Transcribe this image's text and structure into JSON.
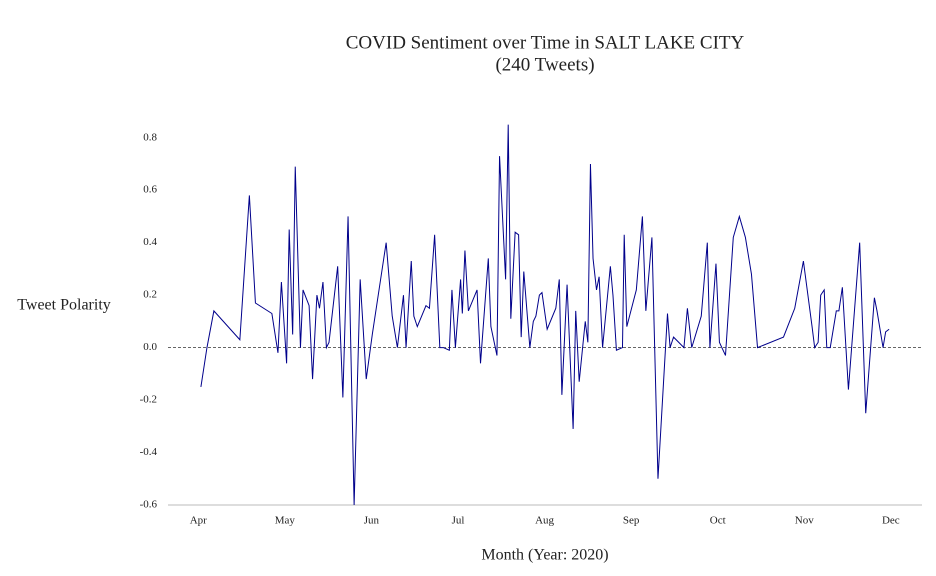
{
  "chart_data": {
    "type": "line",
    "title": "COVID Sentiment over Time in SALT LAKE CITY",
    "subtitle": "(240 Tweets)",
    "x_label": "Month (Year: 2020)",
    "y_label": "Tweet Polarity",
    "xlim": [
      3.65,
      12.36
    ],
    "xticks": [
      {
        "value": 4,
        "label": "Apr"
      },
      {
        "value": 5,
        "label": "May"
      },
      {
        "value": 6,
        "label": "Jun"
      },
      {
        "value": 7,
        "label": "Jul"
      },
      {
        "value": 8,
        "label": "Aug"
      },
      {
        "value": 9,
        "label": "Sep"
      },
      {
        "value": 10,
        "label": "Oct"
      },
      {
        "value": 11,
        "label": "Nov"
      },
      {
        "value": 12,
        "label": "Dec"
      }
    ],
    "ylim": [
      -0.6,
      0.86
    ],
    "yticks": [
      -0.6,
      -0.4,
      -0.2,
      {
        "value": 0,
        "label": "0.0"
      },
      0.2,
      0.4,
      0.6,
      0.8
    ],
    "reference_line": 0,
    "series": [
      {
        "color": "#00008b",
        "x": [
          4.03,
          4.1,
          4.18,
          4.48,
          4.59,
          4.66,
          4.85,
          4.92,
          4.96,
          5.02,
          5.05,
          5.09,
          5.12,
          5.18,
          5.21,
          5.28,
          5.32,
          5.37,
          5.4,
          5.44,
          5.48,
          5.51,
          5.61,
          5.67,
          5.73,
          5.8,
          5.87,
          5.94,
          6.01,
          6.17,
          6.24,
          6.3,
          6.37,
          6.4,
          6.46,
          6.49,
          6.53,
          6.63,
          6.67,
          6.73,
          6.79,
          6.83,
          6.9,
          6.93,
          6.97,
          7.03,
          7.05,
          7.08,
          7.12,
          7.22,
          7.26,
          7.35,
          7.38,
          7.45,
          7.48,
          7.55,
          7.58,
          7.61,
          7.66,
          7.7,
          7.73,
          7.76,
          7.83,
          7.87,
          7.9,
          7.94,
          7.97,
          8.03,
          8.13,
          8.17,
          8.2,
          8.26,
          8.33,
          8.36,
          8.4,
          8.47,
          8.5,
          8.53,
          8.56,
          8.6,
          8.63,
          8.67,
          8.76,
          8.79,
          8.83,
          8.9,
          8.92,
          8.95,
          9.06,
          9.13,
          9.17,
          9.24,
          9.31,
          9.42,
          9.45,
          9.49,
          9.61,
          9.65,
          9.7,
          9.81,
          9.88,
          9.91,
          9.98,
          10.02,
          10.09,
          10.18,
          10.25,
          10.32,
          10.39,
          10.46,
          10.76,
          10.89,
          10.99,
          11.09,
          11.12,
          11.16,
          11.19,
          11.23,
          11.26,
          11.3,
          11.37,
          11.4,
          11.44,
          11.51,
          11.64,
          11.71,
          11.81,
          11.84,
          11.91,
          11.94,
          11.98
        ],
        "values": [
          -0.15,
          0.0,
          0.14,
          0.03,
          0.58,
          0.17,
          0.13,
          -0.02,
          0.25,
          -0.06,
          0.45,
          0.05,
          0.69,
          0.0,
          0.22,
          0.16,
          -0.12,
          0.2,
          0.15,
          0.25,
          0.0,
          0.02,
          0.31,
          -0.19,
          0.5,
          -0.6,
          0.26,
          -0.12,
          0.05,
          0.4,
          0.12,
          0.0,
          0.2,
          0.0,
          0.33,
          0.12,
          0.08,
          0.16,
          0.15,
          0.43,
          0.0,
          0.0,
          -0.01,
          0.22,
          0.0,
          0.26,
          0.13,
          0.37,
          0.14,
          0.22,
          -0.06,
          0.34,
          0.08,
          -0.03,
          0.73,
          0.26,
          0.85,
          0.11,
          0.44,
          0.43,
          0.04,
          0.29,
          0.0,
          0.1,
          0.12,
          0.2,
          0.21,
          0.07,
          0.15,
          0.26,
          -0.18,
          0.24,
          -0.31,
          0.14,
          -0.13,
          0.1,
          0.02,
          0.7,
          0.34,
          0.22,
          0.27,
          0.0,
          0.31,
          0.2,
          -0.01,
          0.0,
          0.43,
          0.08,
          0.22,
          0.5,
          0.14,
          0.42,
          -0.5,
          0.13,
          0.0,
          0.04,
          0.0,
          0.15,
          0.0,
          0.12,
          0.4,
          0.0,
          0.32,
          0.02,
          -0.03,
          0.42,
          0.5,
          0.42,
          0.28,
          0.0,
          0.04,
          0.15,
          0.33,
          0.08,
          0.0,
          0.02,
          0.2,
          0.22,
          0.0,
          0.0,
          0.14,
          0.14,
          0.23,
          -0.16,
          0.4,
          -0.25,
          0.19,
          0.14,
          0.0,
          0.06,
          0.07
        ]
      }
    ]
  }
}
